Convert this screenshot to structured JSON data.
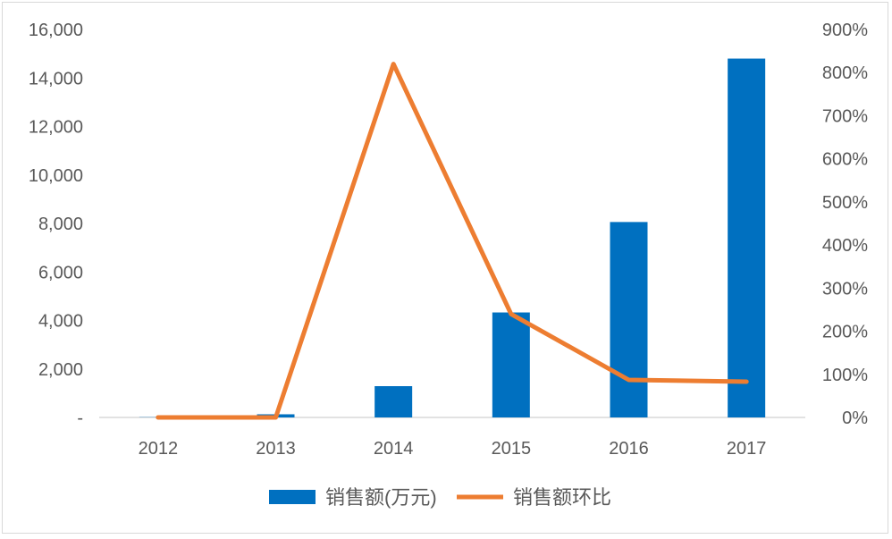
{
  "chart_data": {
    "type": "bar",
    "categories": [
      "2012",
      "2013",
      "2014",
      "2015",
      "2016",
      "2017"
    ],
    "series": [
      {
        "name": "销售额(万元)",
        "type": "bar",
        "axis": "left",
        "color": "#0070C0",
        "values": [
          10,
          130,
          1290,
          4330,
          8060,
          14800
        ]
      },
      {
        "name": "销售额环比",
        "type": "line",
        "axis": "right",
        "color": "#ED7D31",
        "values": [
          0,
          0,
          8.2,
          2.4,
          0.87,
          0.83
        ]
      }
    ],
    "y_left": {
      "min": 0,
      "max": 16000,
      "ticks": [
        0,
        2000,
        4000,
        6000,
        8000,
        10000,
        12000,
        14000,
        16000
      ],
      "tick_labels": [
        "-",
        "2,000",
        "4,000",
        "6,000",
        "8,000",
        "10,000",
        "12,000",
        "14,000",
        "16,000"
      ]
    },
    "y_right": {
      "min": 0,
      "max": 9,
      "ticks": [
        0,
        1,
        2,
        3,
        4,
        5,
        6,
        7,
        8,
        9
      ],
      "tick_labels": [
        "0%",
        "100%",
        "200%",
        "300%",
        "400%",
        "500%",
        "600%",
        "700%",
        "800%",
        "900%"
      ]
    },
    "grid": false,
    "legend_position": "bottom",
    "title": "",
    "xlabel": "",
    "ylabel": ""
  }
}
